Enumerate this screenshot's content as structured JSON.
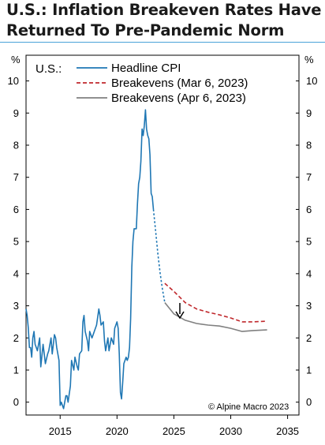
{
  "title_line1": "U.S.: Inflation Breakeven Rates Have",
  "title_line2": "Returned To Pre-Pandemic Norm",
  "panel_label": "U.S.:",
  "credit": "© Alpine Macro 2023",
  "colors": {
    "headline_cpi": "#1f77b4",
    "breakevens_mar": "#c0282c",
    "breakevens_apr": "#808080",
    "title_rule": "#4aa3d8"
  },
  "chart_data": {
    "type": "line",
    "title": "U.S.: Inflation Breakeven Rates Have Returned To Pre-Pandemic Norm",
    "ylabel_left": "%",
    "ylabel_right": "%",
    "xlim": [
      2012,
      2036
    ],
    "ylim": [
      -0.4,
      10.8
    ],
    "x_ticks": [
      2015,
      2020,
      2025,
      2030,
      2035
    ],
    "y_ticks": [
      0,
      1,
      2,
      3,
      4,
      5,
      6,
      7,
      8,
      9,
      10
    ],
    "legend_position": "top-right",
    "annotation": "down-arrow",
    "series": [
      {
        "name": "Headline CPI",
        "style": "solid",
        "x": [
          2012.0,
          2012.1,
          2012.2,
          2012.3,
          2012.4,
          2012.5,
          2012.6,
          2012.7,
          2012.8,
          2012.9,
          2013.0,
          2013.2,
          2013.3,
          2013.5,
          2013.6,
          2013.7,
          2013.9,
          2014.0,
          2014.2,
          2014.3,
          2014.5,
          2014.6,
          2014.7,
          2014.9,
          2015.0,
          2015.1,
          2015.2,
          2015.3,
          2015.5,
          2015.6,
          2015.7,
          2015.9,
          2016.0,
          2016.2,
          2016.3,
          2016.5,
          2016.6,
          2016.7,
          2016.9,
          2017.0,
          2017.1,
          2017.2,
          2017.4,
          2017.5,
          2017.6,
          2017.8,
          2017.9,
          2018.0,
          2018.2,
          2018.4,
          2018.5,
          2018.6,
          2018.8,
          2018.9,
          2019.0,
          2019.2,
          2019.3,
          2019.5,
          2019.7,
          2019.8,
          2020.0,
          2020.1,
          2020.2,
          2020.3,
          2020.4,
          2020.5,
          2020.6,
          2020.8,
          2020.9,
          2021.0,
          2021.1,
          2021.2,
          2021.3,
          2021.4,
          2021.5,
          2021.6,
          2021.7,
          2021.8,
          2021.9,
          2022.0,
          2022.1,
          2022.2,
          2022.3,
          2022.4,
          2022.5,
          2022.6,
          2022.7,
          2022.8,
          2022.9,
          2023.0,
          2023.1,
          2023.2
        ],
        "values": [
          2.9,
          2.7,
          2.3,
          1.7,
          1.7,
          1.4,
          2.0,
          2.2,
          1.8,
          1.7,
          1.6,
          2.0,
          1.1,
          1.8,
          1.5,
          1.2,
          1.5,
          1.6,
          2.0,
          1.5,
          2.1,
          2.0,
          1.7,
          1.3,
          -0.1,
          0.0,
          -0.1,
          -0.2,
          0.2,
          0.2,
          0.0,
          0.5,
          1.3,
          1.0,
          1.4,
          1.1,
          1.0,
          1.5,
          1.6,
          2.5,
          2.7,
          2.2,
          1.9,
          1.6,
          2.2,
          2.0,
          2.1,
          2.2,
          2.4,
          2.9,
          2.7,
          2.4,
          2.5,
          1.9,
          1.6,
          2.0,
          1.6,
          2.0,
          1.8,
          2.3,
          2.5,
          2.3,
          1.5,
          0.3,
          0.1,
          0.6,
          1.2,
          1.4,
          1.3,
          1.4,
          1.7,
          2.6,
          4.2,
          5.0,
          5.4,
          5.4,
          5.4,
          6.2,
          6.8,
          7.0,
          7.5,
          8.5,
          8.3,
          8.6,
          9.1,
          8.5,
          8.3,
          8.2,
          7.7,
          6.5,
          6.4,
          6.0
        ]
      },
      {
        "name": "Headline CPI (projected path)",
        "style": "dotted",
        "x": [
          2023.2,
          2023.4,
          2023.6,
          2023.8,
          2024.0,
          2024.2
        ],
        "values": [
          6.0,
          5.3,
          4.6,
          4.0,
          3.5,
          3.1
        ]
      },
      {
        "name": "Breakevens (Mar 6, 2023)",
        "style": "dashed",
        "x": [
          2024.2,
          2025.0,
          2026.0,
          2027.0,
          2028.0,
          2029.0,
          2030.0,
          2031.0,
          2032.0,
          2033.2
        ],
        "values": [
          3.7,
          3.45,
          3.1,
          2.9,
          2.8,
          2.72,
          2.62,
          2.5,
          2.5,
          2.52
        ]
      },
      {
        "name": "Breakevens (Apr 6, 2023)",
        "style": "solid",
        "x": [
          2024.2,
          2025.0,
          2026.0,
          2027.0,
          2028.0,
          2029.0,
          2030.0,
          2031.0,
          2032.0,
          2033.2
        ],
        "values": [
          3.1,
          2.75,
          2.55,
          2.45,
          2.4,
          2.37,
          2.3,
          2.2,
          2.23,
          2.25
        ]
      }
    ],
    "legend": [
      {
        "label": "Headline CPI",
        "color": "#1f77b4",
        "dash": "solid"
      },
      {
        "label": "Breakevens (Mar 6, 2023)",
        "color": "#c0282c",
        "dash": "dashed"
      },
      {
        "label": "Breakevens (Apr 6, 2023)",
        "color": "#808080",
        "dash": "solid"
      }
    ]
  }
}
